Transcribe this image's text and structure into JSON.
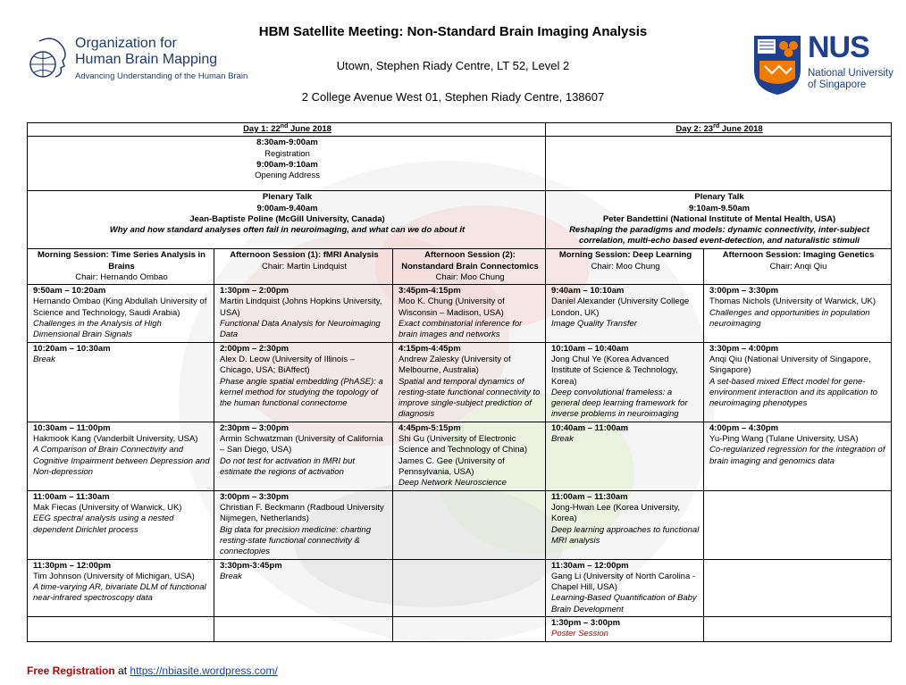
{
  "header": {
    "title": "HBM Satellite Meeting: Non-Standard Brain Imaging Analysis",
    "venue": "Utown, Stephen Riady Centre, LT 52, Level 2",
    "address": "2 College Avenue West 01, Stephen Riady Centre, 138607"
  },
  "logos": {
    "ohbm": {
      "line1": "Organization for",
      "line2": "Human Brain Mapping",
      "tagline": "Advancing Understanding of the Human Brain"
    },
    "nus": {
      "word": "NUS",
      "line1": "National University",
      "line2": "of Singapore"
    }
  },
  "days": {
    "day1": {
      "prefix": "Day 1:  22",
      "sup": "nd",
      "suffix": " June 2018"
    },
    "day2": {
      "prefix": "Day 2:  23",
      "sup": "rd",
      "suffix": " June 2018"
    }
  },
  "opening": {
    "t1": "8:30am-9:00am",
    "l1": "Registration",
    "t2": "9:00am-9:10am",
    "l2": "Opening Address"
  },
  "plenary": {
    "day1": {
      "label": "Plenary Talk",
      "time": "9:00am-9.40am",
      "speaker": "Jean-Baptiste Poline (McGill University, Canada)",
      "title": "Why and how standard analyses often fail in neuroimaging, and what can we do about it"
    },
    "day2": {
      "label": "Plenary Talk",
      "time": "9:10am-9.50am",
      "speaker": "Peter Bandettini (National Institute of Mental Health, USA)",
      "title": "Reshaping the paradigms and models: dynamic connectivity, inter-subject correlation, multi-echo based event-detection, and naturalistic stimuli"
    }
  },
  "sessions": [
    {
      "name": "Morning Session: Time Series Analysis in Brains",
      "chair": "Chair: Hernando Ombao"
    },
    {
      "name": "Afternoon Session (1): fMRI Analysis",
      "chair": "Chair: Martin Lindquist"
    },
    {
      "name": "Afternoon Session (2): Nonstandard Brain Connectomics",
      "chair": "Chair:  Moo Chung"
    },
    {
      "name": "Morning Session: Deep Learning",
      "chair": "Chair: Moo Chung"
    },
    {
      "name": "Afternoon Session: Imaging Genetics",
      "chair": "Chair: Anqi Qiu"
    }
  ],
  "rows": [
    [
      {
        "time": "9:50am – 10:20am",
        "speaker": "Hernando Ombao (King Abdullah University of Science and Technology, Saudi Arabia)",
        "talk": "Challenges in the Analysis of High Dimensional Brain Signals"
      },
      {
        "time": "1:30pm – 2:00pm",
        "speaker": "Martin Lindquist (Johns Hopkins University, USA)",
        "talk": "Functional Data Analysis for Neuroimaging Data"
      },
      {
        "time": "3:45pm-4:15pm",
        "speaker": "Moo K. Chung (University of Wisconsin – Madison, USA)",
        "talk": "Exact combinatorial inference for brain images and networks"
      },
      {
        "time": "9:40am – 10:10am",
        "speaker": "Daniel Alexander (University College London, UK)",
        "talk": "Image Quality Transfer"
      },
      {
        "time": "3:00pm – 3:30pm",
        "speaker": "Thomas Nichols (University of Warwick, UK)",
        "talk": "Challenges and opportunities in population neuroimaging"
      }
    ],
    [
      {
        "time": "10:20am – 10:30am",
        "speaker": "",
        "talk": "Break"
      },
      {
        "time": "2:00pm – 2:30pm",
        "speaker": "Alex D. Leow (University of Illinois – Chicago, USA; BiAffect)",
        "talk": "Phase angle spatial embedding (PhASE): a kernel method for studying the topology of the human functional connectome"
      },
      {
        "time": "4:15pm-4:45pm",
        "speaker": "Andrew Zalesky (University of Melbourne, Australia)",
        "talk": "Spatial and temporal dynamics of resting-state functional connectivity to improve single-subject prediction of diagnosis"
      },
      {
        "time": "10:10am – 10:40am",
        "speaker": "Jong Chul Ye (Korea Advanced Institute of Science & Technology, Korea)",
        "talk": "Deep convolutional frameless: a general deep learning framework for inverse problems in neuroimaging"
      },
      {
        "time": "3:30pm – 4:00pm",
        "speaker": "Anqi Qiu (National University of Singapore, Singapore)",
        "talk": "A set-based mixed Effect model for gene-environment interaction and its application to neuroimaging phenotypes"
      }
    ],
    [
      {
        "time": "10:30am – 11:00pm",
        "speaker": "Hakmook Kang (Vanderbilt University, USA)",
        "talk": "A Comparison of Brain Connectivity and Cognitive Impairment between Depression and Non-depression"
      },
      {
        "time": "2:30pm – 3:00pm",
        "speaker": "Armin Schwatzman (University of California – San Diego, USA)",
        "talk": "Do not test for activation in fMRI but estimate the regions of activation"
      },
      {
        "time": "4:45pm-5:15pm",
        "speaker": "Shi Gu (University of Electronic Science and Technology of China)",
        "speaker2": "James C. Gee (University of Pennsylvania, USA)",
        "talk": "Deep Network Neuroscience"
      },
      {
        "time": "10:40am – 11:00am",
        "speaker": "",
        "talk": "Break"
      },
      {
        "time": "4:00pm – 4:30pm",
        "speaker": "Yu-Ping Wang  (Tulane University, USA)",
        "talk": "Co-regularized regression for the integration of brain imaging and genomics data"
      }
    ],
    [
      {
        "time": "11:00am – 11:30am",
        "speaker": "Mak Fiecas (University of Warwick, UK)",
        "talk": "EEG spectral analysis using a nested dependent Dirichlet process"
      },
      {
        "time": "3:00pm – 3:30pm",
        "speaker": "Christian F. Beckmann (Radboud University Nijmegen, Netherlands)",
        "talk": "Big data for precision medicine: charting resting-state functional connectivity & connectopies"
      },
      {
        "time": "",
        "speaker": "",
        "talk": ""
      },
      {
        "time": "11:00am – 11:30am",
        "speaker": "Jong-Hwan Lee (Korea University, Korea)",
        "talk": "Deep learning approaches to functional MRI analysis"
      },
      {
        "time": "",
        "speaker": "",
        "talk": ""
      }
    ],
    [
      {
        "time": "11:30pm – 12:00pm",
        "speaker": "Tim Johnson (University of Michigan, USA)",
        "talk": "A time-varying AR, bivariate DLM of functional near-infrared spectroscopy data"
      },
      {
        "time": "3:30pm-3:45pm",
        "speaker": "",
        "talk": "Break"
      },
      {
        "time": "",
        "speaker": "",
        "talk": ""
      },
      {
        "time": "11:30am – 12:00pm",
        "speaker": "Gang Li (University of North Carolina - Chapel Hill, USA)",
        "talk": "Learning-Based Quantification of Baby Brain Development"
      },
      {
        "time": "",
        "speaker": "",
        "talk": ""
      }
    ]
  ],
  "poster": {
    "time": "1:30pm – 3:00pm",
    "label": "Poster Session"
  },
  "footer": {
    "label": "Free Registration",
    "mid": " at ",
    "link": "https://nbiasite.wordpress.com/"
  },
  "colors": {
    "ohbm_blue": "#1f3b6b",
    "nus_blue": "#1f3f8f",
    "nus_orange": "#ef7c00",
    "red": "#c00000",
    "link": "#1a3fb5"
  }
}
